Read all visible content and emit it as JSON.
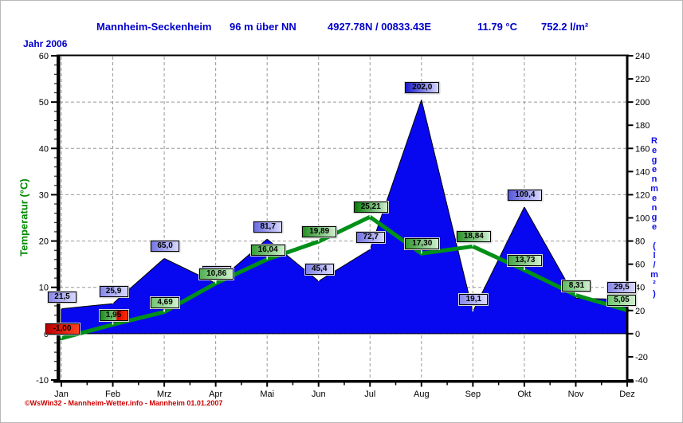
{
  "header": {
    "station": "Mannheim-Seckenheim",
    "altitude": "96 m über NN",
    "coordinates": "4927.78N / 00833.43E",
    "year_avg_temp": "11.79 °C",
    "year_total_rain": "752.2 l/m²"
  },
  "period_label": "Jahr 2006",
  "footer": "©WsWin32 - Mannheim-Wetter.info - Mannheim  01.01.2007",
  "colors": {
    "header_blue": "#0000cc",
    "area_blue": "#0808f0",
    "line_green": "#009018",
    "grid_gray": "#999999",
    "axis_black": "#000000",
    "left_title_green": "#008a00",
    "right_title_blue": "#1010e8",
    "footer_red": "#cc0000",
    "rain_label_dark": "#0000c0",
    "rain_label_light": "#a0a0f0",
    "rain_label_end": "#d8d8ff",
    "temp_label_dark": "#007800",
    "temp_label_light": "#90d890",
    "temp_label_end": "#d0f0d0"
  },
  "chart_data": {
    "type": "area+line, dual axis",
    "title": "Jahr 2006 — Mannheim-Seckenheim",
    "categories": [
      "Jan",
      "Feb",
      "Mrz",
      "Apr",
      "Mai",
      "Jun",
      "Jul",
      "Aug",
      "Sep",
      "Okt",
      "Nov",
      "Dez"
    ],
    "series": [
      {
        "name": "Regenmenge",
        "type": "area",
        "axis": "right",
        "values": [
          21.5,
          25.9,
          65.0,
          43.5,
          81.7,
          45.4,
          72.7,
          202.0,
          19.1,
          109.4,
          30.6,
          29.5
        ],
        "labels": [
          "21,5",
          "25,9",
          "65,0",
          "43,5",
          "81,7",
          "45,4",
          "72,7",
          "202,0",
          "19,1",
          "109,4",
          null,
          "29,5"
        ],
        "label_styles": [
          "blue",
          "blue",
          "blue",
          "blue",
          "blue",
          "blue",
          "blue",
          "blue",
          "blue",
          "blue",
          null,
          "blue"
        ]
      },
      {
        "name": "Temperatur",
        "type": "line",
        "axis": "left",
        "values": [
          -1.0,
          1.95,
          4.69,
          10.86,
          16.04,
          19.89,
          25.21,
          17.3,
          18.84,
          13.73,
          8.31,
          5.05
        ],
        "labels": [
          "-1,00",
          "1,95",
          "4,69",
          "10,86",
          "16,04",
          "19,89",
          "25,21",
          "17,30",
          "18,84",
          "13,73",
          "8,31",
          "5,05"
        ],
        "label_styles": [
          "red",
          "green-red",
          "green",
          "green",
          "green",
          "green",
          "green",
          "green",
          "green",
          "green",
          "green",
          "green"
        ]
      }
    ],
    "left_axis": {
      "title": "Temperatur  (°C)",
      "min": -10,
      "max": 60,
      "step": 10,
      "minor_step": 2
    },
    "right_axis": {
      "title": "Regenmenge  (l/m²)",
      "min": -40,
      "max": 240,
      "step": 20
    },
    "grid": "dashed, at every 10 °C / 40 l/m² and at every month",
    "note": "Nov rain value has no visible label in the chart; area height read as ≈30.6 l/m². Apr rain label 43,5 is mostly covered by the 10,86 temperature label."
  }
}
